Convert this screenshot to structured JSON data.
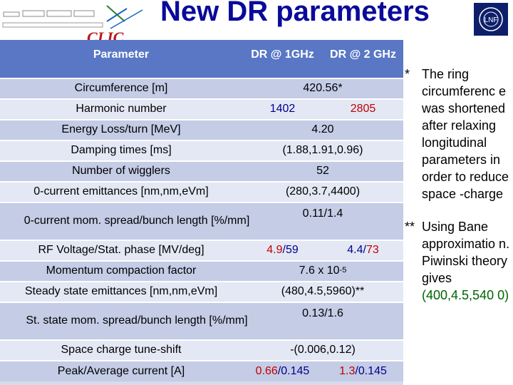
{
  "slide": {
    "title": "New DR parameters",
    "logo_left_text": "CLIC",
    "logo_right_text": "LNF"
  },
  "table": {
    "header": {
      "param": "Parameter",
      "col1": "DR @ 1GHz",
      "col2": "DR @ 2 GHz"
    },
    "rows": [
      {
        "param": "Circumference [m]",
        "merged": "420.56*"
      },
      {
        "param": "Harmonic number",
        "v1": "1402",
        "v2": "2805"
      },
      {
        "param": "Energy Loss/turn [MeV]",
        "merged": "4.20"
      },
      {
        "param": "Damping times [ms]",
        "merged": "(1.88,1.91,0.96)"
      },
      {
        "param": "Number of wigglers",
        "merged": "52"
      },
      {
        "param": "0-current emittances [nm,nm,eVm]",
        "merged": "(280,3.7,4400)"
      },
      {
        "param": "0-current mom. spread/bunch length [%/mm]",
        "merged": "0.11/1.4"
      },
      {
        "param": "RF Voltage/Stat. phase [MV/deg]",
        "v1_a": "4.9",
        "v1_sep": "/",
        "v1_b": "59",
        "v2_a": "4.4",
        "v2_sep": "/",
        "v2_b": "73"
      },
      {
        "param": "Momentum compaction factor",
        "merged_base": "7.6 x 10",
        "merged_exp": "-5"
      },
      {
        "param": "Steady state emittances [nm,nm,eVm]",
        "merged": "(480,4.5,5960)**"
      },
      {
        "param": "St. state mom. spread/bunch length [%/mm]",
        "merged": "0.13/1.6"
      },
      {
        "param": "Space charge tune-shift",
        "merged": "-(0.006,0.12)"
      },
      {
        "param": "Peak/Average current [A]",
        "v1_a": "0.66",
        "v1_sep": "/",
        "v1_b": "0.145",
        "v2_a": "1.3",
        "v2_sep": "/",
        "v2_b": "0.145"
      }
    ]
  },
  "notes": {
    "n1_mark": "*",
    "n1_text": "The ring circumferenc e was shortened after relaxing longitudinal parameters in order to reduce space -charge",
    "n2_mark": "**",
    "n2_text": "Using Bane approximatio n. Piwinski theory gives ",
    "n2_value": "(400,4.5,540 0)"
  },
  "colors": {
    "title": "#0a0a9a",
    "header_bg": "#5977c4",
    "row_odd": "#c4cce6",
    "row_even": "#e4e8f5",
    "red": "#c00000",
    "blue": "#00008b",
    "green": "#006400"
  }
}
